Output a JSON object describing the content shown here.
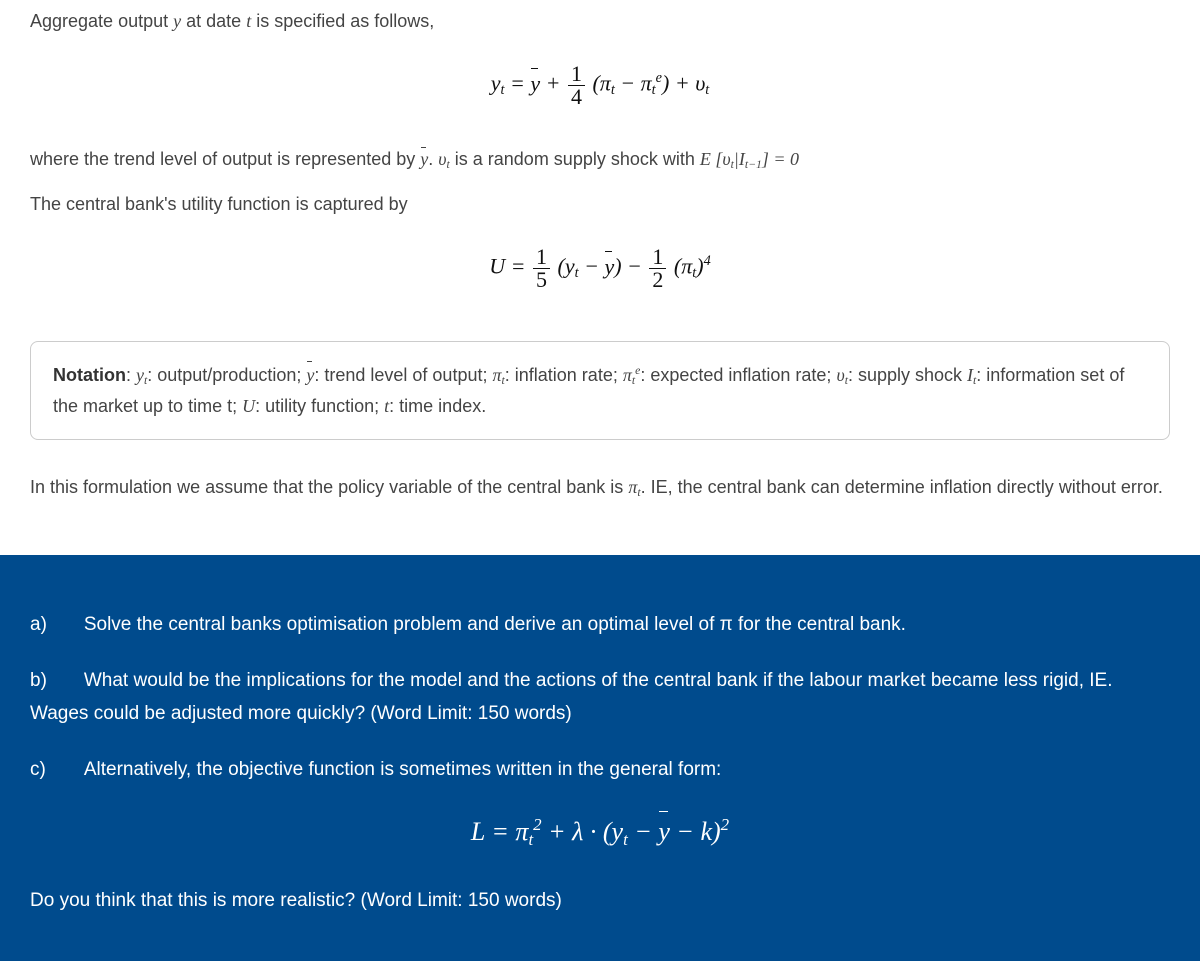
{
  "intro": "Aggregate output  y  at date  t  is specified as follows,",
  "where_line": "where the trend level of output is represented by ȳ. υₜ is a random supply shock with E [υₜ|Iₜ₋₁] = 0",
  "utility_line": "The central bank's utility function is captured by",
  "notation_label": "Notation",
  "notation_body": ": yₜ: output/production; ȳ: trend level of output; πₜ: inflation rate; πₜᵉ: expected inflation rate; υₜ: supply shock Iₜ: information set of the market up to time t; U: utility function; t: time index.",
  "formulation": "In this formulation we assume that the policy variable of the central bank is πₜ. IE, the central bank can determine inflation directly without error.",
  "qa_label": "a)",
  "qa_text": "Solve the central banks optimisation problem and derive an optimal level of π for the central bank.",
  "qb_label": "b)",
  "qb_text": "What would be the implications for the model and the actions of the central bank if the labour market became less rigid, IE. Wages could be adjusted more quickly? (Word Limit: 150 words)",
  "qc_label": "c)",
  "qc_text": "Alternatively, the objective function is sometimes written in the general form:",
  "qc_footer": "Do you think that this is more realistic? (Word Limit: 150 words)",
  "eq1": {
    "frac_num": "1",
    "frac_den": "4"
  },
  "eq2": {
    "frac1_num": "1",
    "frac1_den": "5",
    "frac2_num": "1",
    "frac2_den": "2",
    "power": "4"
  }
}
